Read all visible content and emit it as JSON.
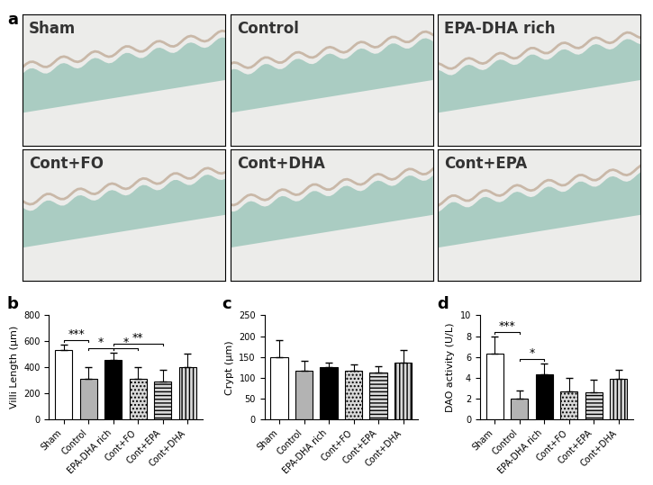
{
  "image_panel": {
    "panel": "a",
    "tiles": [
      "Sham",
      "Control",
      "EPA-DHA rich",
      "Cont+FO",
      "Cont+DHA",
      "Cont+EPA"
    ]
  },
  "chart_data": [
    {
      "type": "bar",
      "panel": "b",
      "y_label": "Villi Length (μm)",
      "categories": [
        "Sham",
        "Control",
        "EPA-DHA rich",
        "Cont+FO",
        "Cont+EPA",
        "Cont+DHA"
      ],
      "values": [
        530,
        310,
        460,
        315,
        290,
        405
      ],
      "errors": [
        45,
        90,
        55,
        85,
        90,
        100
      ],
      "colors": [
        "#ffffff",
        "#b3b3b3",
        "#000000",
        "#d9d9d9",
        "#d9d9d9",
        "#d9d9d9"
      ],
      "ylim": [
        0,
        800
      ],
      "yticks": [
        0,
        200,
        400,
        600,
        800
      ],
      "significance": [
        {
          "pair": [
            "Sham",
            "Control"
          ],
          "label": "***"
        },
        {
          "pair": [
            "Control",
            "EPA-DHA rich"
          ],
          "label": "*"
        },
        {
          "pair": [
            "EPA-DHA rich",
            "Cont+FO"
          ],
          "label": "*"
        },
        {
          "pair": [
            "EPA-DHA rich",
            "Cont+EPA"
          ],
          "label": "**"
        }
      ]
    },
    {
      "type": "bar",
      "panel": "c",
      "y_label": "Crypt (μm)",
      "categories": [
        "Sham",
        "Control",
        "EPA-DHA rich",
        "Cont+FO",
        "Cont+EPA",
        "Cont+DHA"
      ],
      "values": [
        150,
        118,
        125,
        118,
        113,
        136
      ],
      "errors": [
        40,
        22,
        12,
        15,
        15,
        30
      ],
      "colors": [
        "#ffffff",
        "#b3b3b3",
        "#000000",
        "#d9d9d9",
        "#d9d9d9",
        "#d9d9d9"
      ],
      "ylim": [
        0,
        250
      ],
      "yticks": [
        0,
        50,
        100,
        150,
        200,
        250
      ],
      "significance": []
    },
    {
      "type": "bar",
      "panel": "d",
      "y_label": "DAO activity (U/L)",
      "categories": [
        "Sham",
        "Control",
        "EPA-DHA rich",
        "Cont+FO",
        "Cont+EPA",
        "Cont+DHA"
      ],
      "values": [
        6.3,
        2.0,
        4.3,
        2.7,
        2.65,
        3.9
      ],
      "errors": [
        1.7,
        0.8,
        1.1,
        1.3,
        1.2,
        0.9
      ],
      "colors": [
        "#ffffff",
        "#b3b3b3",
        "#000000",
        "#d9d9d9",
        "#d9d9d9",
        "#d9d9d9"
      ],
      "ylim": [
        0,
        10
      ],
      "yticks": [
        0,
        2,
        4,
        6,
        8,
        10
      ],
      "significance": [
        {
          "pair": [
            "Sham",
            "Control"
          ],
          "label": "***"
        },
        {
          "pair": [
            "Control",
            "EPA-DHA rich"
          ],
          "label": "*"
        }
      ]
    }
  ]
}
